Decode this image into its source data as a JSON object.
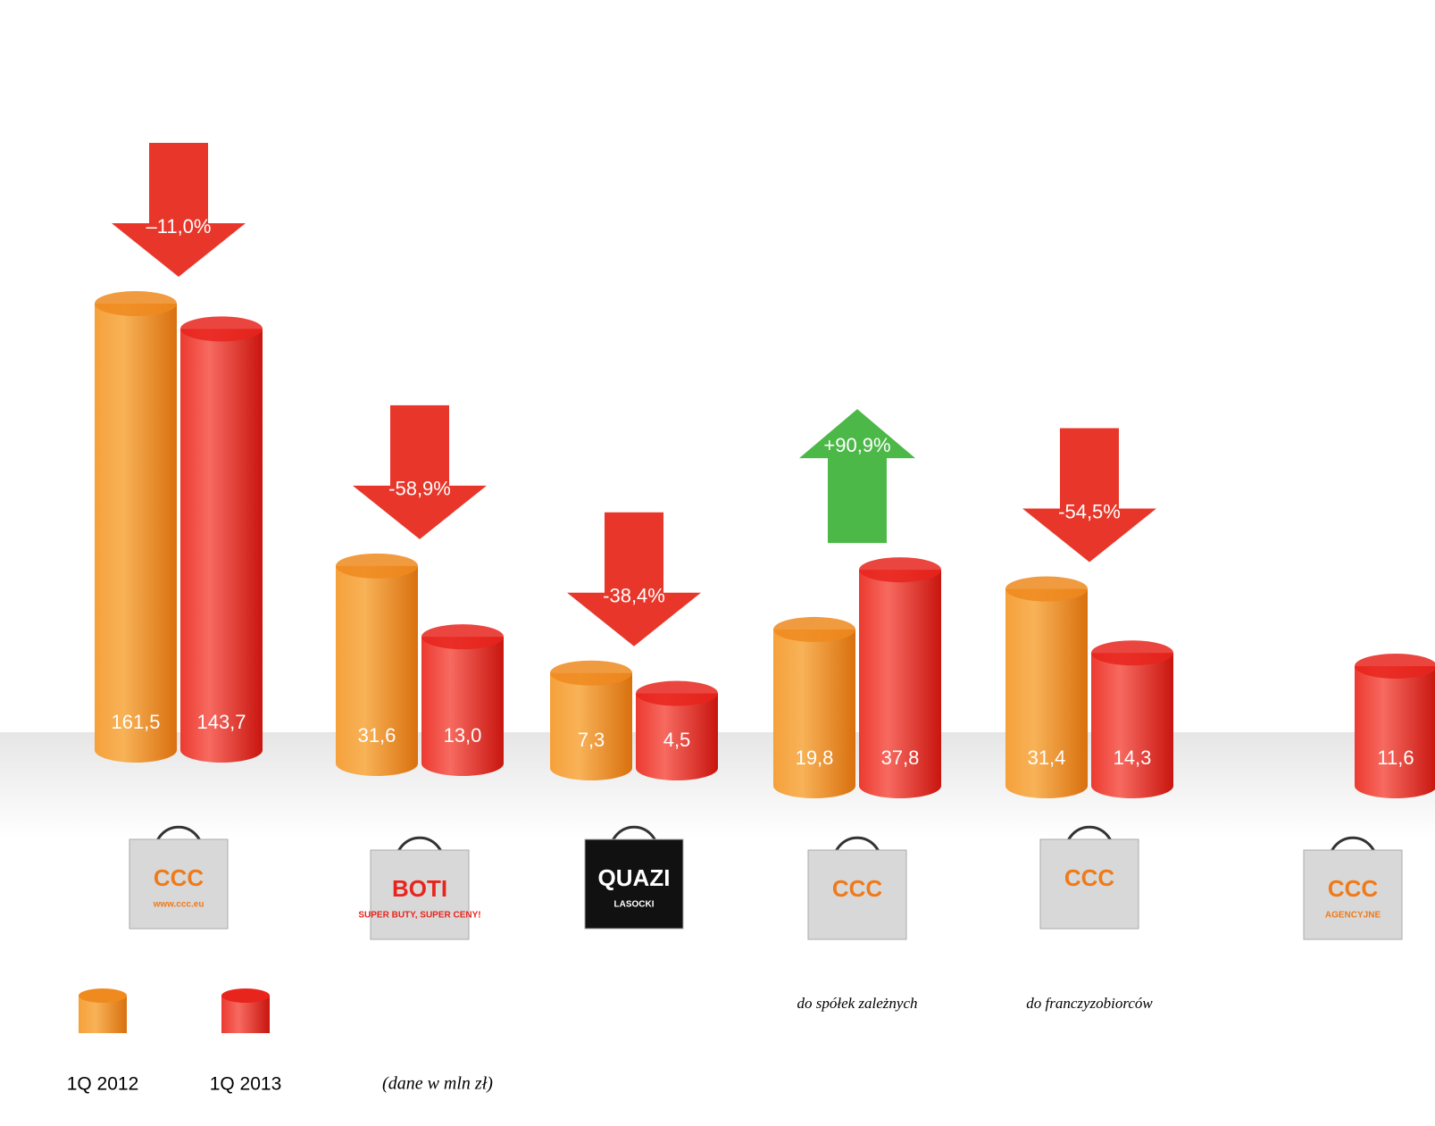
{
  "chart_data": {
    "type": "bar",
    "note": "(dane w mln zł)",
    "categories": [
      null,
      null,
      null,
      "do spółek zależnych",
      "do franczyzobiorców",
      null
    ],
    "logos": [
      [
        "CCC",
        "www.ccc.eu"
      ],
      [
        "BOTI",
        "SUPER BUTY, SUPER CENY!"
      ],
      [
        "QUAZI",
        "LASOCKI"
      ],
      [
        "CCC"
      ],
      [
        "CCC"
      ],
      [
        "CCC",
        "AGENCYJNE"
      ]
    ],
    "series": [
      {
        "name": "1Q 2012",
        "color": "#ef8a1f",
        "values": [
          161.5,
          31.6,
          7.3,
          19.8,
          31.4,
          null
        ],
        "value_labels": [
          "161,5",
          "31,6",
          "7,3",
          "19,8",
          "31,4",
          null
        ]
      },
      {
        "name": "1Q 2013",
        "color": "#e8251d",
        "values": [
          143.7,
          13.0,
          4.5,
          37.8,
          14.3,
          11.6
        ],
        "value_labels": [
          "143,7",
          "13,0",
          "4,5",
          "37,8",
          "14,3",
          "11,6"
        ]
      }
    ],
    "changes": [
      -11.0,
      -58.9,
      -38.4,
      90.9,
      -54.5,
      null
    ],
    "change_labels": [
      "–11,0%",
      "-58,9%",
      "-38,4%",
      "+90,9%",
      "-54,5%",
      null
    ],
    "up_color": "#4cb847",
    "down_color": "#e8372a"
  }
}
